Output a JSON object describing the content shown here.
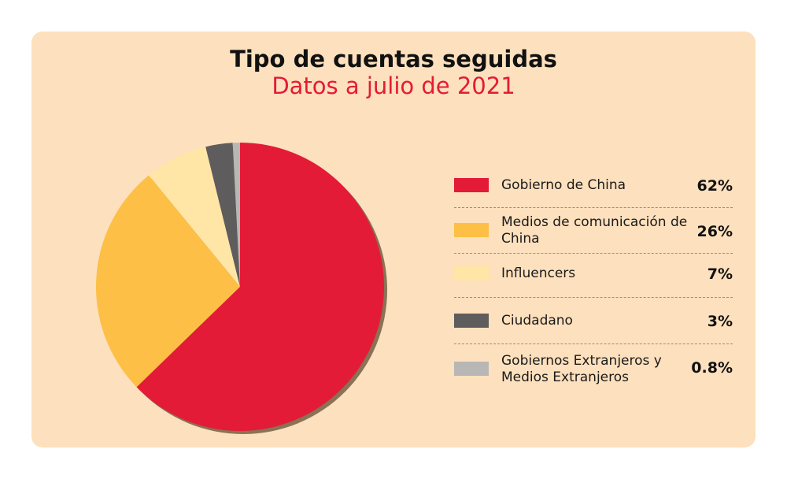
{
  "chart_data": {
    "type": "pie",
    "title": "Tipo de cuentas seguidas",
    "subtitle": "Datos a julio de 2021",
    "slices": [
      {
        "label": "Gobierno de China",
        "value": 62,
        "value_label": "62%",
        "color": "#e31b37"
      },
      {
        "label": "Medios de comunicación de China",
        "value": 26,
        "value_label": "26%",
        "color": "#fdbf46"
      },
      {
        "label": "Influencers",
        "value": 7,
        "value_label": "7%",
        "color": "#ffe6a6"
      },
      {
        "label": "Ciudadano",
        "value": 3,
        "value_label": "3%",
        "color": "#5f5c5d"
      },
      {
        "label": "Gobiernos Extranjeros y Medios Extranjeros",
        "value": 0.8,
        "value_label": "0.8%",
        "color": "#b9b7b6"
      }
    ]
  },
  "colors": {
    "background": "#fde0bd",
    "title": "#111111",
    "subtitle": "#e31b37",
    "shadow": "#8a7256"
  }
}
